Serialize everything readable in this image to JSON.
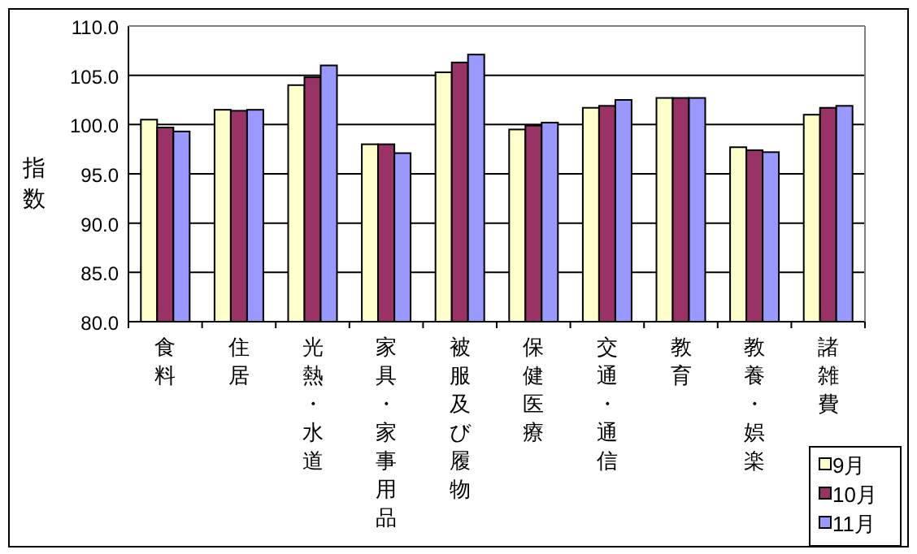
{
  "chart_data": {
    "type": "bar",
    "ylabel": "指数",
    "categories": [
      "食料",
      "住居",
      "光熱・水道",
      "家具・家事用品",
      "被服及び履物",
      "保健医療",
      "交通・通信",
      "教育",
      "教養・娯楽",
      "諸雑費"
    ],
    "series": [
      {
        "name": "9月",
        "color": "#ffffcc",
        "values": [
          100.5,
          101.5,
          104.0,
          98.0,
          105.3,
          99.5,
          101.7,
          102.7,
          97.7,
          101.0
        ]
      },
      {
        "name": "10月",
        "color": "#993366",
        "values": [
          99.7,
          101.4,
          104.8,
          98.0,
          106.3,
          99.9,
          101.9,
          102.7,
          97.4,
          101.7
        ]
      },
      {
        "name": "11月",
        "color": "#9999ff",
        "values": [
          99.3,
          101.5,
          106.0,
          97.1,
          107.1,
          100.2,
          102.5,
          102.7,
          97.2,
          101.9
        ]
      }
    ],
    "ylim": [
      80,
      110
    ],
    "yticks": [
      {
        "value": 80,
        "label": "80.0"
      },
      {
        "value": 85,
        "label": "85.0"
      },
      {
        "value": 90,
        "label": "90.0"
      },
      {
        "value": 95,
        "label": "95.0"
      },
      {
        "value": 100,
        "label": "100.0"
      },
      {
        "value": 105,
        "label": "105.0"
      },
      {
        "value": 110,
        "label": "110.0"
      }
    ],
    "grid": "y",
    "legend": "bottom right"
  }
}
